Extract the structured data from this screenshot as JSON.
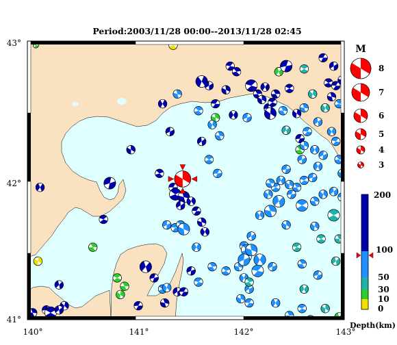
{
  "title": "Period:2003/11/28 00:00--2013/11/28 02:45",
  "axes": {
    "lon_ticks": [
      "140°",
      "141°",
      "142°",
      "143°"
    ],
    "lat_ticks": [
      "43°",
      "42°",
      "41°"
    ]
  },
  "magnitude_legend": {
    "header": "M",
    "labels": [
      "8",
      "7",
      "6",
      "5",
      "4",
      "3"
    ],
    "color": "#ff0000"
  },
  "depth_legend": {
    "labels": [
      "200",
      "100",
      "50",
      "30",
      "10",
      "0"
    ],
    "unit_label": "Depth(km)",
    "colors": {
      "deep": "#0000aa",
      "mid": "#1e90ff",
      "teal": "#20b2aa",
      "shallow_green": "#2ecc2e",
      "surface_yellow": "#f0e000"
    }
  },
  "map_colors": {
    "sea": "#e0ffff",
    "land": "#fae1c0",
    "coast": "#000000",
    "target_event": "#ff0000"
  },
  "main_event": {
    "lon": 141.47,
    "lat": 42.01,
    "magnitude": 6,
    "depth_km": 95
  },
  "events": [
    {
      "lon": 140.08,
      "lat": 42.97,
      "m": 3,
      "d": "shallow_green"
    },
    {
      "lon": 141.38,
      "lat": 42.97,
      "m": 4,
      "d": "surface_yellow"
    },
    {
      "lon": 141.42,
      "lat": 42.62,
      "m": 4,
      "d": "mid"
    },
    {
      "lon": 141.65,
      "lat": 42.71,
      "m": 5,
      "d": "deep"
    },
    {
      "lon": 141.72,
      "lat": 42.68,
      "m": 4,
      "d": "deep"
    },
    {
      "lon": 141.78,
      "lat": 42.55,
      "m": 4,
      "d": "deep"
    },
    {
      "lon": 141.62,
      "lat": 42.5,
      "m": 4,
      "d": "mid"
    },
    {
      "lon": 141.78,
      "lat": 42.45,
      "m": 4,
      "d": "shallow_green"
    },
    {
      "lon": 141.28,
      "lat": 42.55,
      "m": 4,
      "d": "deep"
    },
    {
      "lon": 141.35,
      "lat": 42.35,
      "m": 4,
      "d": "deep"
    },
    {
      "lon": 141.92,
      "lat": 42.82,
      "m": 4,
      "d": "deep"
    },
    {
      "lon": 141.98,
      "lat": 42.78,
      "m": 4,
      "d": "deep"
    },
    {
      "lon": 141.88,
      "lat": 42.65,
      "m": 4,
      "d": "deep"
    },
    {
      "lon": 141.95,
      "lat": 42.47,
      "m": 4,
      "d": "deep"
    },
    {
      "lon": 142.08,
      "lat": 42.45,
      "m": 4,
      "d": "mid"
    },
    {
      "lon": 142.12,
      "lat": 42.68,
      "m": 5,
      "d": "deep"
    },
    {
      "lon": 142.18,
      "lat": 42.62,
      "m": 4,
      "d": "deep"
    },
    {
      "lon": 142.22,
      "lat": 42.58,
      "m": 4,
      "d": "deep"
    },
    {
      "lon": 142.25,
      "lat": 42.67,
      "m": 4,
      "d": "deep"
    },
    {
      "lon": 142.28,
      "lat": 42.52,
      "m": 4,
      "d": "deep"
    },
    {
      "lon": 142.32,
      "lat": 42.56,
      "m": 4,
      "d": "deep"
    },
    {
      "lon": 142.35,
      "lat": 42.62,
      "m": 4,
      "d": "deep"
    },
    {
      "lon": 142.3,
      "lat": 42.48,
      "m": 5,
      "d": "deep"
    },
    {
      "lon": 142.38,
      "lat": 42.78,
      "m": 4,
      "d": "shallow_green"
    },
    {
      "lon": 142.45,
      "lat": 42.82,
      "m": 5,
      "d": "deep"
    },
    {
      "lon": 142.48,
      "lat": 42.66,
      "m": 4,
      "d": "deep"
    },
    {
      "lon": 142.42,
      "lat": 42.5,
      "m": 4,
      "d": "mid"
    },
    {
      "lon": 142.55,
      "lat": 42.48,
      "m": 4,
      "d": "deep"
    },
    {
      "lon": 142.45,
      "lat": 42.36,
      "m": 4,
      "d": "teal"
    },
    {
      "lon": 142.58,
      "lat": 42.3,
      "m": 4,
      "d": "deep"
    },
    {
      "lon": 142.62,
      "lat": 42.8,
      "m": 4,
      "d": "teal"
    },
    {
      "lon": 142.62,
      "lat": 42.52,
      "m": 4,
      "d": "mid"
    },
    {
      "lon": 142.7,
      "lat": 42.62,
      "m": 4,
      "d": "teal"
    },
    {
      "lon": 142.75,
      "lat": 42.42,
      "m": 4,
      "d": "mid"
    },
    {
      "lon": 142.8,
      "lat": 42.88,
      "m": 4,
      "d": "deep"
    },
    {
      "lon": 142.85,
      "lat": 42.7,
      "m": 4,
      "d": "deep"
    },
    {
      "lon": 142.88,
      "lat": 42.6,
      "m": 4,
      "d": "deep"
    },
    {
      "lon": 142.82,
      "lat": 42.52,
      "m": 4,
      "d": "teal"
    },
    {
      "lon": 142.9,
      "lat": 42.82,
      "m": 4,
      "d": "deep"
    },
    {
      "lon": 142.92,
      "lat": 42.68,
      "m": 4,
      "d": "deep"
    },
    {
      "lon": 142.95,
      "lat": 42.55,
      "m": 4,
      "d": "mid"
    },
    {
      "lon": 142.98,
      "lat": 42.72,
      "m": 4,
      "d": "deep"
    },
    {
      "lon": 142.88,
      "lat": 42.35,
      "m": 4,
      "d": "mid"
    },
    {
      "lon": 142.6,
      "lat": 42.15,
      "m": 4,
      "d": "mid"
    },
    {
      "lon": 142.65,
      "lat": 42.35,
      "m": 4,
      "d": "mid"
    },
    {
      "lon": 142.58,
      "lat": 42.22,
      "m": 4,
      "d": "shallow_green"
    },
    {
      "lon": 142.62,
      "lat": 42.25,
      "m": 4,
      "d": "mid"
    },
    {
      "lon": 142.72,
      "lat": 42.22,
      "m": 4,
      "d": "mid"
    },
    {
      "lon": 142.8,
      "lat": 42.18,
      "m": 4,
      "d": "mid"
    },
    {
      "lon": 142.92,
      "lat": 42.28,
      "m": 4,
      "d": "mid"
    },
    {
      "lon": 142.95,
      "lat": 42.15,
      "m": 4,
      "d": "mid"
    },
    {
      "lon": 142.98,
      "lat": 42.05,
      "m": 4,
      "d": "mid"
    },
    {
      "lon": 142.75,
      "lat": 42.1,
      "m": 4,
      "d": "mid"
    },
    {
      "lon": 142.7,
      "lat": 42.02,
      "m": 4,
      "d": "mid"
    },
    {
      "lon": 142.62,
      "lat": 42.0,
      "m": 4,
      "d": "mid"
    },
    {
      "lon": 142.55,
      "lat": 41.95,
      "m": 4,
      "d": "mid"
    },
    {
      "lon": 142.48,
      "lat": 41.97,
      "m": 4,
      "d": "mid"
    },
    {
      "lon": 142.4,
      "lat": 42.0,
      "m": 4,
      "d": "mid"
    },
    {
      "lon": 142.45,
      "lat": 42.08,
      "m": 4,
      "d": "mid"
    },
    {
      "lon": 142.35,
      "lat": 41.95,
      "m": 4,
      "d": "mid"
    },
    {
      "lon": 142.3,
      "lat": 41.98,
      "m": 4,
      "d": "mid"
    },
    {
      "lon": 142.28,
      "lat": 41.9,
      "m": 4,
      "d": "mid"
    },
    {
      "lon": 142.38,
      "lat": 41.85,
      "m": 5,
      "d": "mid"
    },
    {
      "lon": 142.5,
      "lat": 41.9,
      "m": 4,
      "d": "mid"
    },
    {
      "lon": 142.6,
      "lat": 41.82,
      "m": 5,
      "d": "mid"
    },
    {
      "lon": 142.72,
      "lat": 41.85,
      "m": 4,
      "d": "mid"
    },
    {
      "lon": 142.8,
      "lat": 41.9,
      "m": 4,
      "d": "mid"
    },
    {
      "lon": 142.9,
      "lat": 41.92,
      "m": 4,
      "d": "mid"
    },
    {
      "lon": 142.98,
      "lat": 41.88,
      "m": 4,
      "d": "mid"
    },
    {
      "lon": 142.9,
      "lat": 41.75,
      "m": 5,
      "d": "teal"
    },
    {
      "lon": 142.3,
      "lat": 41.78,
      "m": 5,
      "d": "mid"
    },
    {
      "lon": 142.2,
      "lat": 41.75,
      "m": 4,
      "d": "mid"
    },
    {
      "lon": 142.12,
      "lat": 41.6,
      "m": 4,
      "d": "mid"
    },
    {
      "lon": 142.05,
      "lat": 41.53,
      "m": 4,
      "d": "mid"
    },
    {
      "lon": 142.08,
      "lat": 41.45,
      "m": 4,
      "d": "mid"
    },
    {
      "lon": 142.0,
      "lat": 41.38,
      "m": 4,
      "d": "mid"
    },
    {
      "lon": 142.05,
      "lat": 41.3,
      "m": 4,
      "d": "mid"
    },
    {
      "lon": 142.1,
      "lat": 41.22,
      "m": 4,
      "d": "mid"
    },
    {
      "lon": 142.1,
      "lat": 41.12,
      "m": 4,
      "d": "mid"
    },
    {
      "lon": 142.08,
      "lat": 41.5,
      "m": 5,
      "d": "mid"
    },
    {
      "lon": 142.12,
      "lat": 41.5,
      "m": 5,
      "d": "mid"
    },
    {
      "lon": 142.2,
      "lat": 41.43,
      "m": 5,
      "d": "mid"
    },
    {
      "lon": 142.05,
      "lat": 41.43,
      "m": 5,
      "d": "mid"
    },
    {
      "lon": 142.18,
      "lat": 41.35,
      "m": 5,
      "d": "mid"
    },
    {
      "lon": 142.1,
      "lat": 41.27,
      "m": 4,
      "d": "teal"
    },
    {
      "lon": 142.02,
      "lat": 41.15,
      "m": 4,
      "d": "mid"
    },
    {
      "lon": 142.35,
      "lat": 41.12,
      "m": 4,
      "d": "mid"
    },
    {
      "lon": 142.32,
      "lat": 41.38,
      "m": 4,
      "d": "mid"
    },
    {
      "lon": 142.55,
      "lat": 41.52,
      "m": 4,
      "d": "teal"
    },
    {
      "lon": 142.6,
      "lat": 41.4,
      "m": 4,
      "d": "mid"
    },
    {
      "lon": 142.45,
      "lat": 41.68,
      "m": 4,
      "d": "mid"
    },
    {
      "lon": 142.62,
      "lat": 41.22,
      "m": 4,
      "d": "teal"
    },
    {
      "lon": 142.68,
      "lat": 41.0,
      "m": 4,
      "d": "mid"
    },
    {
      "lon": 142.6,
      "lat": 41.08,
      "m": 4,
      "d": "mid"
    },
    {
      "lon": 142.48,
      "lat": 41.03,
      "m": 4,
      "d": "mid"
    },
    {
      "lon": 142.82,
      "lat": 41.08,
      "m": 4,
      "d": "teal"
    },
    {
      "lon": 142.95,
      "lat": 41.02,
      "m": 4,
      "d": "shallow_green"
    },
    {
      "lon": 142.75,
      "lat": 41.32,
      "m": 4,
      "d": "mid"
    },
    {
      "lon": 142.78,
      "lat": 41.58,
      "m": 4,
      "d": "teal"
    },
    {
      "lon": 142.95,
      "lat": 41.58,
      "m": 4,
      "d": "teal"
    },
    {
      "lon": 142.72,
      "lat": 41.67,
      "m": 4,
      "d": "mid"
    },
    {
      "lon": 142.92,
      "lat": 41.42,
      "m": 4,
      "d": "teal"
    },
    {
      "lon": 141.8,
      "lat": 42.05,
      "m": 4,
      "d": "mid"
    },
    {
      "lon": 141.72,
      "lat": 42.15,
      "m": 4,
      "d": "mid"
    },
    {
      "lon": 141.82,
      "lat": 42.32,
      "m": 4,
      "d": "mid"
    },
    {
      "lon": 141.75,
      "lat": 42.4,
      "m": 4,
      "d": "mid"
    },
    {
      "lon": 141.65,
      "lat": 42.28,
      "m": 4,
      "d": "deep"
    },
    {
      "lon": 141.38,
      "lat": 41.95,
      "m": 4,
      "d": "deep"
    },
    {
      "lon": 141.4,
      "lat": 41.9,
      "m": 5,
      "d": "deep"
    },
    {
      "lon": 141.48,
      "lat": 41.88,
      "m": 5,
      "d": "deep"
    },
    {
      "lon": 141.55,
      "lat": 41.85,
      "m": 4,
      "d": "deep"
    },
    {
      "lon": 141.45,
      "lat": 41.82,
      "m": 4,
      "d": "deep"
    },
    {
      "lon": 141.6,
      "lat": 41.78,
      "m": 4,
      "d": "deep"
    },
    {
      "lon": 141.25,
      "lat": 42.05,
      "m": 4,
      "d": "deep"
    },
    {
      "lon": 141.65,
      "lat": 41.7,
      "m": 4,
      "d": "deep"
    },
    {
      "lon": 141.68,
      "lat": 41.63,
      "m": 4,
      "d": "deep"
    },
    {
      "lon": 141.32,
      "lat": 41.68,
      "m": 4,
      "d": "mid"
    },
    {
      "lon": 141.4,
      "lat": 41.66,
      "m": 4,
      "d": "mid"
    },
    {
      "lon": 141.45,
      "lat": 41.68,
      "m": 4,
      "d": "mid"
    },
    {
      "lon": 141.48,
      "lat": 41.65,
      "m": 5,
      "d": "mid"
    },
    {
      "lon": 141.6,
      "lat": 41.52,
      "m": 4,
      "d": "mid"
    },
    {
      "lon": 141.55,
      "lat": 41.35,
      "m": 4,
      "d": "deep"
    },
    {
      "lon": 141.62,
      "lat": 41.27,
      "m": 4,
      "d": "mid"
    },
    {
      "lon": 141.75,
      "lat": 41.38,
      "m": 4,
      "d": "mid"
    },
    {
      "lon": 140.98,
      "lat": 42.22,
      "m": 4,
      "d": "deep"
    },
    {
      "lon": 140.12,
      "lat": 41.95,
      "m": 4,
      "d": "deep"
    },
    {
      "lon": 140.78,
      "lat": 41.98,
      "m": 5,
      "d": "deep"
    },
    {
      "lon": 140.72,
      "lat": 41.72,
      "m": 4,
      "d": "deep"
    },
    {
      "lon": 140.62,
      "lat": 41.52,
      "m": 4,
      "d": "shallow_green"
    },
    {
      "lon": 140.1,
      "lat": 41.42,
      "m": 4,
      "d": "surface_yellow"
    },
    {
      "lon": 141.12,
      "lat": 41.38,
      "m": 5,
      "d": "deep"
    },
    {
      "lon": 141.2,
      "lat": 41.3,
      "m": 4,
      "d": "deep"
    },
    {
      "lon": 140.85,
      "lat": 41.3,
      "m": 4,
      "d": "shallow_green"
    },
    {
      "lon": 140.92,
      "lat": 41.24,
      "m": 4,
      "d": "shallow_green"
    },
    {
      "lon": 140.88,
      "lat": 41.18,
      "m": 4,
      "d": "shallow_green"
    },
    {
      "lon": 140.3,
      "lat": 41.25,
      "m": 4,
      "d": "deep"
    },
    {
      "lon": 140.18,
      "lat": 41.07,
      "m": 4,
      "d": "deep"
    },
    {
      "lon": 140.22,
      "lat": 41.05,
      "m": 5,
      "d": "deep"
    },
    {
      "lon": 140.05,
      "lat": 41.05,
      "m": 4,
      "d": "deep"
    },
    {
      "lon": 140.35,
      "lat": 41.1,
      "m": 4,
      "d": "deep"
    },
    {
      "lon": 140.3,
      "lat": 41.07,
      "m": 4,
      "d": "deep"
    },
    {
      "lon": 141.05,
      "lat": 41.1,
      "m": 4,
      "d": "deep"
    },
    {
      "lon": 141.28,
      "lat": 41.22,
      "m": 4,
      "d": "mid"
    },
    {
      "lon": 141.3,
      "lat": 41.12,
      "m": 4,
      "d": "deep"
    },
    {
      "lon": 141.32,
      "lat": 41.23,
      "m": 4,
      "d": "mid"
    },
    {
      "lon": 141.42,
      "lat": 41.2,
      "m": 4,
      "d": "deep"
    },
    {
      "lon": 141.48,
      "lat": 41.2,
      "m": 4,
      "d": "deep"
    },
    {
      "lon": 141.88,
      "lat": 41.35,
      "m": 4,
      "d": "mid"
    }
  ]
}
